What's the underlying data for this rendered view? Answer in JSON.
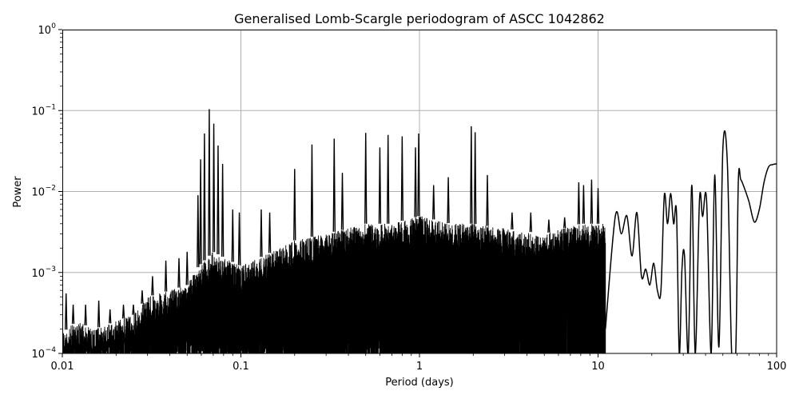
{
  "chart_data": {
    "type": "line",
    "title": "Generalised Lomb-Scargle periodogram of ASCC 1042862",
    "xlabel": "Period (days)",
    "ylabel": "Power",
    "xscale": "log",
    "yscale": "log",
    "xlim": [
      0.01,
      100
    ],
    "ylim": [
      0.0001,
      1
    ],
    "grid": true,
    "legend": null,
    "x_ticks": [
      {
        "value": 0.01,
        "label": "0.01"
      },
      {
        "value": 0.1,
        "label": "0.1"
      },
      {
        "value": 1,
        "label": "1"
      },
      {
        "value": 10,
        "label": "10"
      },
      {
        "value": 100,
        "label": "100"
      }
    ],
    "y_ticks": [
      {
        "value": 1,
        "base": "10",
        "exp": "0"
      },
      {
        "value": 0.1,
        "base": "10",
        "exp": "−1"
      },
      {
        "value": 0.01,
        "base": "10",
        "exp": "−2"
      },
      {
        "value": 0.001,
        "base": "10",
        "exp": "−3"
      },
      {
        "value": 0.0001,
        "base": "10",
        "exp": "−4"
      }
    ],
    "line_color": "#000000",
    "grid_color": "#b0b0b0",
    "noise_envelope": {
      "description": "approximate upper envelope of the dense noise floor (period, power)",
      "x": [
        0.01,
        0.012,
        0.015,
        0.02,
        0.025,
        0.03,
        0.04,
        0.05,
        0.058,
        0.07,
        0.1,
        0.15,
        0.2,
        0.3,
        0.5,
        0.7,
        1.0,
        1.5,
        2.0,
        3.0,
        5.0,
        8.0
      ],
      "y": [
        0.00018,
        0.00025,
        0.0002,
        0.00025,
        0.0003,
        0.0005,
        0.0006,
        0.0007,
        0.0012,
        0.0018,
        0.0012,
        0.0018,
        0.0025,
        0.003,
        0.004,
        0.004,
        0.005,
        0.004,
        0.004,
        0.0035,
        0.003,
        0.004
      ]
    },
    "peaks": {
      "description": "prominent peaks (period in days, power)",
      "x": [
        0.0105,
        0.0115,
        0.0135,
        0.016,
        0.0185,
        0.022,
        0.025,
        0.028,
        0.032,
        0.038,
        0.045,
        0.05,
        0.0575,
        0.0595,
        0.0625,
        0.0665,
        0.0705,
        0.0745,
        0.079,
        0.09,
        0.098,
        0.13,
        0.145,
        0.2,
        0.25,
        0.333,
        0.37,
        0.5,
        0.6,
        0.667,
        0.8,
        0.95,
        0.99,
        1.2,
        1.45,
        1.95,
        2.05,
        2.4,
        3.3,
        4.2,
        5.3,
        6.5,
        7.8,
        8.3,
        9.2,
        10.0,
        12.0,
        14.0,
        16.5,
        20.5,
        23.5,
        27.5,
        33.5,
        38.0,
        48.0,
        56.0,
        68.0,
        100.0
      ],
      "y": [
        0.00055,
        0.0004,
        0.0004,
        0.00045,
        0.00035,
        0.0004,
        0.0004,
        0.0006,
        0.0009,
        0.0014,
        0.0015,
        0.0018,
        0.009,
        0.025,
        0.052,
        0.104,
        0.069,
        0.037,
        0.022,
        0.006,
        0.0055,
        0.006,
        0.0055,
        0.019,
        0.038,
        0.045,
        0.017,
        0.053,
        0.035,
        0.05,
        0.048,
        0.035,
        0.052,
        0.012,
        0.015,
        0.064,
        0.054,
        0.016,
        0.0055,
        0.0055,
        0.0045,
        0.0048,
        0.013,
        0.012,
        0.014,
        0.011,
        0.0045,
        0.0048,
        0.0055,
        0.009,
        0.007,
        0.01,
        0.012,
        0.007,
        0.016,
        0.034,
        0.0145,
        0.022
      ]
    },
    "smooth_tail": {
      "description": "resolved oscillating curve at long periods (period, power)",
      "x": [
        11.0,
        12.5,
        13.5,
        14.5,
        15.5,
        16.5,
        17.5,
        18.5,
        19.5,
        20.5,
        21.5,
        22.5,
        23.5,
        24.5,
        25.5,
        26.5,
        27.5,
        28.5,
        29.5,
        30.5,
        32.0,
        33.5,
        35.0,
        37.0,
        38.5,
        40.5,
        43.0,
        45.0,
        47.5,
        50.0,
        53.0,
        56.0,
        59.0,
        61.0,
        63.0,
        66.0,
        70.0,
        75.0,
        80.0,
        85.0,
        90.0,
        95.0,
        100.0
      ],
      "y": [
        0.0002,
        0.005,
        0.003,
        0.005,
        0.0016,
        0.0055,
        0.0009,
        0.0011,
        0.0007,
        0.0013,
        0.0006,
        0.0006,
        0.009,
        0.004,
        0.0095,
        0.004,
        0.0055,
        0.0001,
        0.0011,
        0.0016,
        0.0001,
        0.012,
        0.0001,
        0.008,
        0.0049,
        0.008,
        0.0001,
        0.016,
        0.00012,
        0.034,
        0.022,
        0.0001,
        0.0001,
        0.013,
        0.014,
        0.011,
        0.0075,
        0.0042,
        0.006,
        0.013,
        0.02,
        0.0215,
        0.022
      ]
    }
  }
}
